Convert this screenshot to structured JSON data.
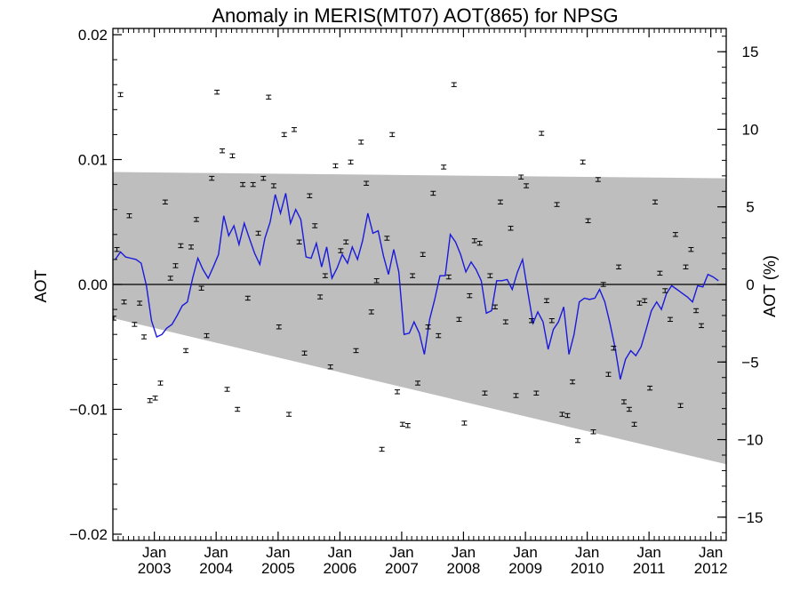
{
  "chart_data": {
    "type": "line",
    "title": "Anomaly in MERIS(MT07) AOT(865) for NPSG",
    "ylabel_left": "AOT",
    "ylabel_right": "AOT (%)",
    "x_range": [
      "2002-05-01",
      "2012-04-01"
    ],
    "ylim_left": [
      -0.0205,
      0.0205
    ],
    "ylim_right": [
      -16.5,
      16.5
    ],
    "grid": false,
    "legend": "none",
    "x_tick_labels": [
      {
        "date": "2003-01-01",
        "month": "Jan",
        "year": "2003"
      },
      {
        "date": "2004-01-01",
        "month": "Jan",
        "year": "2004"
      },
      {
        "date": "2005-01-01",
        "month": "Jan",
        "year": "2005"
      },
      {
        "date": "2006-01-01",
        "month": "Jan",
        "year": "2006"
      },
      {
        "date": "2007-01-01",
        "month": "Jan",
        "year": "2007"
      },
      {
        "date": "2008-01-01",
        "month": "Jan",
        "year": "2008"
      },
      {
        "date": "2009-01-01",
        "month": "Jan",
        "year": "2009"
      },
      {
        "date": "2010-01-01",
        "month": "Jan",
        "year": "2010"
      },
      {
        "date": "2011-01-01",
        "month": "Jan",
        "year": "2011"
      },
      {
        "date": "2012-01-01",
        "month": "Jan",
        "year": "2012"
      }
    ],
    "y_tick_labels_left": [
      {
        "value": 0.02,
        "label": "0.02"
      },
      {
        "value": 0.01,
        "label": "0.01"
      },
      {
        "value": 0.0,
        "label": "0.00"
      },
      {
        "value": -0.01,
        "label": "−0.01"
      },
      {
        "value": -0.02,
        "label": "−0.02"
      }
    ],
    "y_tick_labels_right": [
      {
        "value": 15,
        "label": "15"
      },
      {
        "value": 10,
        "label": "10"
      },
      {
        "value": 5,
        "label": "5"
      },
      {
        "value": 0,
        "label": "0"
      },
      {
        "value": -5,
        "label": "−5"
      },
      {
        "value": -10,
        "label": "−10"
      },
      {
        "value": -15,
        "label": "−15"
      }
    ],
    "shaded_band": {
      "color": "#bebebe",
      "upper": [
        [
          "2002-05-01",
          0.009
        ],
        [
          "2012-04-01",
          0.0085
        ]
      ],
      "lower": [
        [
          "2002-05-01",
          -0.0027
        ],
        [
          "2012-04-01",
          -0.0144
        ]
      ]
    },
    "zero_line": 0.0,
    "smoothed_series": {
      "color": "#1a1adc",
      "points": [
        [
          "2002-05",
          0.002
        ],
        [
          "2002-06",
          0.0026
        ],
        [
          "2002-07",
          0.0022
        ],
        [
          "2002-08",
          0.0021
        ],
        [
          "2002-09",
          0.002
        ],
        [
          "2002-10",
          0.0017
        ],
        [
          "2002-11",
          -0.0001
        ],
        [
          "2002-12",
          -0.0029
        ],
        [
          "2003-01",
          -0.0042
        ],
        [
          "2003-02",
          -0.004
        ],
        [
          "2003-03",
          -0.0035
        ],
        [
          "2003-04",
          -0.0032
        ],
        [
          "2003-05",
          -0.0025
        ],
        [
          "2003-06",
          -0.0017
        ],
        [
          "2003-07",
          -0.0014
        ],
        [
          "2003-08",
          0.0005
        ],
        [
          "2003-09",
          0.0021
        ],
        [
          "2003-10",
          0.0012
        ],
        [
          "2003-11",
          0.0005
        ],
        [
          "2003-12",
          0.0014
        ],
        [
          "2004-01",
          0.0024
        ],
        [
          "2004-02",
          0.0055
        ],
        [
          "2004-03",
          0.0039
        ],
        [
          "2004-04",
          0.0047
        ],
        [
          "2004-05",
          0.0032
        ],
        [
          "2004-06",
          0.0049
        ],
        [
          "2004-07",
          0.0037
        ],
        [
          "2004-08",
          0.0025
        ],
        [
          "2004-09",
          0.0016
        ],
        [
          "2004-10",
          0.0037
        ],
        [
          "2004-11",
          0.005
        ],
        [
          "2004-12",
          0.0072
        ],
        [
          "2005-01",
          0.0057
        ],
        [
          "2005-02",
          0.0073
        ],
        [
          "2005-03",
          0.0049
        ],
        [
          "2005-04",
          0.006
        ],
        [
          "2005-05",
          0.0052
        ],
        [
          "2005-06",
          0.0022
        ],
        [
          "2005-07",
          0.0021
        ],
        [
          "2005-08",
          0.0033
        ],
        [
          "2005-09",
          0.0014
        ],
        [
          "2005-10",
          0.003
        ],
        [
          "2005-11",
          0.0005
        ],
        [
          "2005-12",
          0.0013
        ],
        [
          "2006-01",
          0.0024
        ],
        [
          "2006-02",
          0.0017
        ],
        [
          "2006-03",
          0.003
        ],
        [
          "2006-04",
          0.002
        ],
        [
          "2006-05",
          0.0035
        ],
        [
          "2006-06",
          0.0057
        ],
        [
          "2006-07",
          0.0041
        ],
        [
          "2006-08",
          0.0043
        ],
        [
          "2006-09",
          0.0023
        ],
        [
          "2006-10",
          0.0008
        ],
        [
          "2006-11",
          0.0028
        ],
        [
          "2006-12",
          0.001
        ],
        [
          "2007-01",
          -0.004
        ],
        [
          "2007-02",
          -0.0039
        ],
        [
          "2007-03",
          -0.003
        ],
        [
          "2007-04",
          -0.0039
        ],
        [
          "2007-05",
          -0.0056
        ],
        [
          "2007-06",
          -0.0028
        ],
        [
          "2007-07",
          -0.0012
        ],
        [
          "2007-08",
          0.0007
        ],
        [
          "2007-09",
          0.0007
        ],
        [
          "2007-10",
          0.004
        ],
        [
          "2007-11",
          0.0034
        ],
        [
          "2007-12",
          0.0024
        ],
        [
          "2008-01",
          0.001
        ],
        [
          "2008-02",
          0.0018
        ],
        [
          "2008-03",
          0.0012
        ],
        [
          "2008-04",
          0.0003
        ],
        [
          "2008-05",
          -0.0023
        ],
        [
          "2008-06",
          -0.0021
        ],
        [
          "2008-07",
          0.0003
        ],
        [
          "2008-08",
          0.0003
        ],
        [
          "2008-09",
          0.0004
        ],
        [
          "2008-10",
          -0.0004
        ],
        [
          "2008-11",
          0.001
        ],
        [
          "2008-12",
          0.002
        ],
        [
          "2009-01",
          -0.0006
        ],
        [
          "2009-02",
          -0.0031
        ],
        [
          "2009-03",
          -0.0022
        ],
        [
          "2009-04",
          -0.003
        ],
        [
          "2009-05",
          -0.0052
        ],
        [
          "2009-06",
          -0.0036
        ],
        [
          "2009-07",
          -0.003
        ],
        [
          "2009-08",
          -0.0018
        ],
        [
          "2009-09",
          -0.0056
        ],
        [
          "2009-10",
          -0.004
        ],
        [
          "2009-11",
          -0.0014
        ],
        [
          "2009-12",
          -0.0011
        ],
        [
          "2010-01",
          -0.0012
        ],
        [
          "2010-02",
          -0.0011
        ],
        [
          "2010-03",
          -0.0004
        ],
        [
          "2010-04",
          -0.0014
        ],
        [
          "2010-05",
          -0.0031
        ],
        [
          "2010-06",
          -0.0051
        ],
        [
          "2010-07",
          -0.0076
        ],
        [
          "2010-08",
          -0.006
        ],
        [
          "2010-09",
          -0.0053
        ],
        [
          "2010-10",
          -0.0057
        ],
        [
          "2010-11",
          -0.005
        ],
        [
          "2010-12",
          -0.0036
        ],
        [
          "2011-01",
          -0.0021
        ],
        [
          "2011-02",
          -0.0014
        ],
        [
          "2011-03",
          -0.002
        ],
        [
          "2011-04",
          -0.0007
        ],
        [
          "2011-05",
          -0.0001
        ],
        [
          "2011-06",
          -0.0004
        ],
        [
          "2011-07",
          -0.0007
        ],
        [
          "2011-08",
          -0.001
        ],
        [
          "2011-09",
          -0.0014
        ],
        [
          "2011-10",
          -0.0001
        ],
        [
          "2011-11",
          -0.0002
        ],
        [
          "2011-12",
          0.0008
        ],
        [
          "2012-01",
          0.0006
        ],
        [
          "2012-02",
          0.0003
        ]
      ]
    },
    "points": [
      [
        "2002-05-06",
        -0.0027
      ],
      [
        "2002-05-25",
        0.0028
      ],
      [
        "2002-06-15",
        0.0152
      ],
      [
        "2002-07-06",
        -0.0014
      ],
      [
        "2002-08-06",
        0.0055
      ],
      [
        "2002-09-06",
        -0.0032
      ],
      [
        "2002-10-06",
        -0.0015
      ],
      [
        "2002-11-01",
        -0.0042
      ],
      [
        "2002-12-06",
        -0.0093
      ],
      [
        "2003-01-06",
        -0.0091
      ],
      [
        "2003-02-06",
        -0.0079
      ],
      [
        "2003-03-06",
        0.0066
      ],
      [
        "2003-04-06",
        0.0005
      ],
      [
        "2003-05-06",
        0.0015
      ],
      [
        "2003-06-06",
        0.0031
      ],
      [
        "2003-07-06",
        -0.0053
      ],
      [
        "2003-08-06",
        0.003
      ],
      [
        "2003-09-06",
        0.0052
      ],
      [
        "2003-10-06",
        -0.0003
      ],
      [
        "2003-11-06",
        -0.0041
      ],
      [
        "2003-12-06",
        0.0085
      ],
      [
        "2004-01-06",
        0.0154
      ],
      [
        "2004-02-06",
        0.0107
      ],
      [
        "2004-03-06",
        -0.0084
      ],
      [
        "2004-04-06",
        0.0103
      ],
      [
        "2004-05-06",
        -0.01
      ],
      [
        "2004-06-06",
        0.008
      ],
      [
        "2004-07-06",
        -0.0011
      ],
      [
        "2004-08-06",
        0.008
      ],
      [
        "2004-09-06",
        0.0041
      ],
      [
        "2004-10-06",
        0.0085
      ],
      [
        "2004-11-06",
        0.015
      ],
      [
        "2004-12-06",
        0.0079
      ],
      [
        "2005-01-06",
        -0.0034
      ],
      [
        "2005-02-06",
        0.012
      ],
      [
        "2005-03-06",
        -0.0104
      ],
      [
        "2005-04-06",
        0.0124
      ],
      [
        "2005-05-06",
        0.0034
      ],
      [
        "2005-06-06",
        -0.0055
      ],
      [
        "2005-07-06",
        0.0071
      ],
      [
        "2005-08-06",
        0.0047
      ],
      [
        "2005-09-06",
        -0.001
      ],
      [
        "2005-10-06",
        0.0007
      ],
      [
        "2005-11-06",
        -0.0066
      ],
      [
        "2005-12-06",
        0.0095
      ],
      [
        "2006-01-06",
        0.0027
      ],
      [
        "2006-02-06",
        0.0034
      ],
      [
        "2006-03-06",
        0.0098
      ],
      [
        "2006-04-06",
        -0.0053
      ],
      [
        "2006-05-06",
        0.0114
      ],
      [
        "2006-06-06",
        0.0081
      ],
      [
        "2006-07-06",
        -0.0022
      ],
      [
        "2006-08-06",
        0.0003
      ],
      [
        "2006-09-06",
        -0.0132
      ],
      [
        "2006-10-06",
        0.0037
      ],
      [
        "2006-11-06",
        0.012
      ],
      [
        "2006-12-06",
        -0.0086
      ],
      [
        "2007-01-06",
        -0.0112
      ],
      [
        "2007-02-06",
        -0.0113
      ],
      [
        "2007-03-06",
        0.0007
      ],
      [
        "2007-04-06",
        -0.0079
      ],
      [
        "2007-05-06",
        0.0024
      ],
      [
        "2007-06-06",
        -0.0034
      ],
      [
        "2007-07-06",
        0.0073
      ],
      [
        "2007-08-06",
        -0.0041
      ],
      [
        "2007-09-06",
        0.0094
      ],
      [
        "2007-10-06",
        0.0006
      ],
      [
        "2007-11-06",
        0.016
      ],
      [
        "2007-12-06",
        -0.0028
      ],
      [
        "2008-01-06",
        -0.0111
      ],
      [
        "2008-02-06",
        -0.0009
      ],
      [
        "2008-03-06",
        0.0035
      ],
      [
        "2008-04-06",
        0.0033
      ],
      [
        "2008-05-06",
        -0.0087
      ],
      [
        "2008-06-06",
        0.0007
      ],
      [
        "2008-07-06",
        -0.0018
      ],
      [
        "2008-08-06",
        0.0066
      ],
      [
        "2008-09-06",
        -0.003
      ],
      [
        "2008-10-06",
        0.0045
      ],
      [
        "2008-11-06",
        -0.0089
      ],
      [
        "2008-12-06",
        0.0086
      ],
      [
        "2009-01-06",
        0.0079
      ],
      [
        "2009-02-06",
        -0.0029
      ],
      [
        "2009-03-06",
        -0.0087
      ],
      [
        "2009-04-06",
        0.0121
      ],
      [
        "2009-05-06",
        -0.0013
      ],
      [
        "2009-06-06",
        -0.0029
      ],
      [
        "2009-07-06",
        0.0064
      ],
      [
        "2009-08-06",
        -0.0104
      ],
      [
        "2009-09-06",
        -0.0105
      ],
      [
        "2009-10-06",
        -0.0078
      ],
      [
        "2009-11-06",
        -0.0125
      ],
      [
        "2009-12-06",
        0.0098
      ],
      [
        "2010-01-06",
        0.0051
      ],
      [
        "2010-02-06",
        -0.0118
      ],
      [
        "2010-03-06",
        0.0084
      ],
      [
        "2010-04-06",
        0.0
      ],
      [
        "2010-05-06",
        -0.0072
      ],
      [
        "2010-06-06",
        -0.0051
      ],
      [
        "2010-07-06",
        0.0014
      ],
      [
        "2010-08-06",
        -0.0094
      ],
      [
        "2010-09-06",
        -0.01
      ],
      [
        "2010-10-06",
        -0.0112
      ],
      [
        "2010-11-06",
        -0.0015
      ],
      [
        "2010-12-06",
        -0.0013
      ],
      [
        "2011-01-06",
        -0.0083
      ],
      [
        "2011-02-06",
        0.0066
      ],
      [
        "2011-03-06",
        0.0009
      ],
      [
        "2011-04-06",
        -0.0005
      ],
      [
        "2011-05-06",
        -0.0028
      ],
      [
        "2011-06-06",
        0.004
      ],
      [
        "2011-07-06",
        -0.0097
      ],
      [
        "2011-08-06",
        0.0014
      ],
      [
        "2011-09-06",
        0.0028
      ],
      [
        "2011-10-06",
        -0.0021
      ],
      [
        "2011-11-06",
        -0.0033
      ]
    ]
  }
}
